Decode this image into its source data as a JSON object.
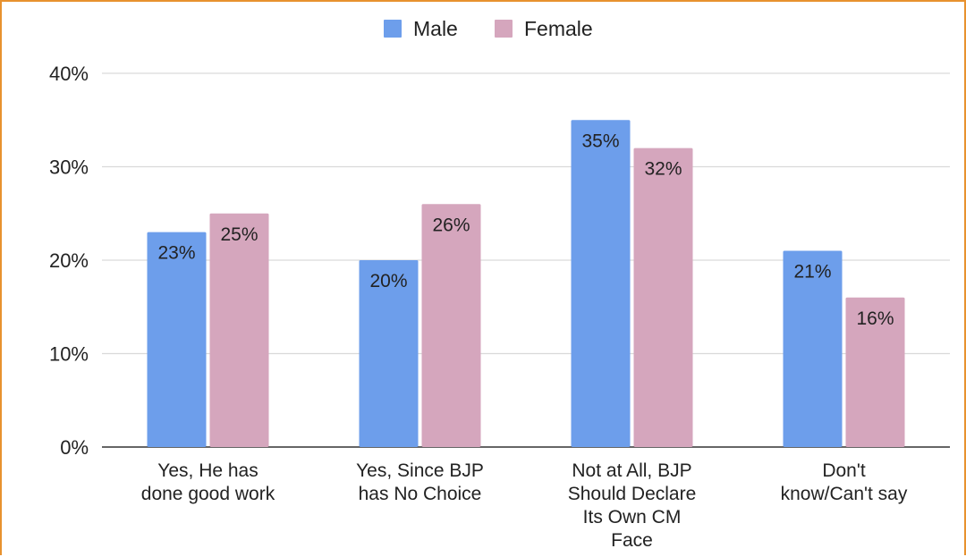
{
  "chart_data": {
    "type": "bar",
    "title": "",
    "xlabel": "",
    "ylabel": "",
    "ylim": [
      0,
      40
    ],
    "yticks": [
      "0%",
      "10%",
      "20%",
      "30%",
      "40%"
    ],
    "ytick_values": [
      0,
      10,
      20,
      30,
      40
    ],
    "grid": true,
    "legend_position": "top-center",
    "categories": [
      [
        "Yes, He has",
        "done good work"
      ],
      [
        "Yes, Since BJP",
        "has No Choice"
      ],
      [
        "Not at All, BJP",
        "Should Declare",
        "Its Own CM",
        "Face"
      ],
      [
        "Don't",
        "know/Can't say"
      ]
    ],
    "series": [
      {
        "name": "Male",
        "color": "#6d9eeb",
        "values": [
          23,
          20,
          35,
          21
        ],
        "labels": [
          "23%",
          "20%",
          "35%",
          "21%"
        ]
      },
      {
        "name": "Female",
        "color": "#d5a6bd",
        "values": [
          25,
          26,
          32,
          16
        ],
        "labels": [
          "25%",
          "26%",
          "32%",
          "16%"
        ]
      }
    ]
  }
}
